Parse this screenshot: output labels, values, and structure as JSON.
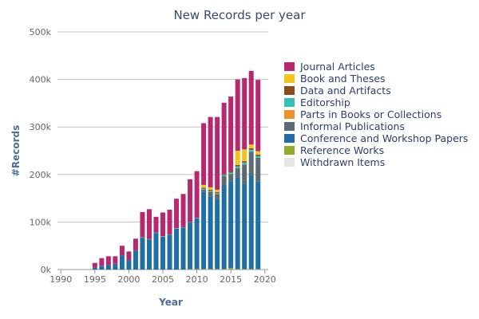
{
  "chart_data": {
    "type": "bar",
    "stacked": true,
    "title": "New Records per year",
    "xlabel": "Year",
    "ylabel": "#Records",
    "x_tick_labels": [
      "1990",
      "1995",
      "2000",
      "2005",
      "2010",
      "2015",
      "2020"
    ],
    "y_tick_labels": [
      "0k",
      "100k",
      "200k",
      "300k",
      "400k",
      "500k"
    ],
    "xlim": [
      1989.5,
      2020.5
    ],
    "ylim": [
      0,
      500000
    ],
    "grid": true,
    "legend_position": "right",
    "categories": [
      1995,
      1996,
      1997,
      1998,
      1999,
      2000,
      2001,
      2002,
      2003,
      2004,
      2005,
      2006,
      2007,
      2008,
      2009,
      2010,
      2011,
      2012,
      2013,
      2014,
      2015,
      2016,
      2017,
      2018,
      2019
    ],
    "series": [
      {
        "name": "Withdrawn Items",
        "color": "#e6e6e6",
        "values": [
          0,
          0,
          0,
          0,
          0,
          0,
          0,
          0,
          0,
          0,
          0,
          0,
          0,
          0,
          0,
          0,
          0,
          0,
          0,
          0,
          0,
          0,
          0,
          0,
          0
        ]
      },
      {
        "name": "Reference Works",
        "color": "#8fad2b",
        "values": [
          0,
          0,
          0,
          0,
          0,
          0,
          0,
          0,
          0,
          0,
          0,
          0,
          0,
          0,
          1000,
          1000,
          1000,
          1000,
          1000,
          1000,
          3000,
          1000,
          1000,
          1000,
          1000
        ]
      },
      {
        "name": "Conference and Workshop Papers",
        "color": "#1f6fa5",
        "values": [
          4000,
          8000,
          10000,
          12000,
          30000,
          20000,
          40000,
          67000,
          63000,
          77000,
          69000,
          73000,
          86000,
          88000,
          98000,
          107000,
          162000,
          153000,
          148000,
          176000,
          183000,
          192000,
          180000,
          197000,
          184000
        ]
      },
      {
        "name": "Informal Publications",
        "color": "#5b6b73",
        "values": [
          0,
          0,
          0,
          0,
          0,
          0,
          0,
          0,
          0,
          0,
          0,
          0,
          0,
          0,
          0,
          0,
          5000,
          10000,
          10000,
          20000,
          15000,
          20000,
          40000,
          50000,
          50000
        ]
      },
      {
        "name": "Parts in Books or Collections",
        "color": "#f0922c",
        "values": [
          0,
          0,
          0,
          0,
          0,
          0,
          0,
          0,
          0,
          0,
          0,
          0,
          0,
          0,
          0,
          0,
          0,
          0,
          0,
          0,
          0,
          0,
          0,
          0,
          0
        ]
      },
      {
        "name": "Editorship",
        "color": "#35c0b8",
        "values": [
          0,
          0,
          0,
          0,
          0,
          0,
          0,
          1000,
          1000,
          1000,
          1000,
          1000,
          1000,
          1000,
          1000,
          1000,
          2000,
          2000,
          2000,
          2000,
          3000,
          4000,
          4000,
          4000,
          4000
        ]
      },
      {
        "name": "Data and Artifacts",
        "color": "#8a4b1f",
        "values": [
          0,
          0,
          0,
          0,
          0,
          0,
          0,
          0,
          0,
          0,
          0,
          0,
          0,
          0,
          0,
          0,
          2000,
          2000,
          2000,
          2000,
          3000,
          3000,
          3000,
          3000,
          3000
        ]
      },
      {
        "name": "Book and Theses",
        "color": "#f2c318",
        "values": [
          0,
          0,
          0,
          0,
          0,
          0,
          0,
          0,
          0,
          0,
          0,
          0,
          0,
          0,
          0,
          0,
          6000,
          5000,
          5000,
          0,
          0,
          30000,
          25000,
          8000,
          7000
        ]
      },
      {
        "name": "Journal Articles",
        "color": "#b8286e",
        "values": [
          10000,
          16000,
          18000,
          16000,
          20000,
          18000,
          25000,
          53000,
          63000,
          33000,
          50000,
          52000,
          62000,
          70000,
          90000,
          98000,
          130000,
          148000,
          153000,
          150000,
          157000,
          150000,
          150000,
          155000,
          150000
        ]
      }
    ],
    "legend_order": [
      "Journal Articles",
      "Book and Theses",
      "Data and Artifacts",
      "Editorship",
      "Parts in Books or Collections",
      "Informal Publications",
      "Conference and Workshop Papers",
      "Reference Works",
      "Withdrawn Items"
    ]
  },
  "colors": {
    "title_color": "#3a4a6b",
    "axis_title_color": "#4a6e9e",
    "tick_color": "#666666",
    "grid_color": "#bfbfbf"
  }
}
